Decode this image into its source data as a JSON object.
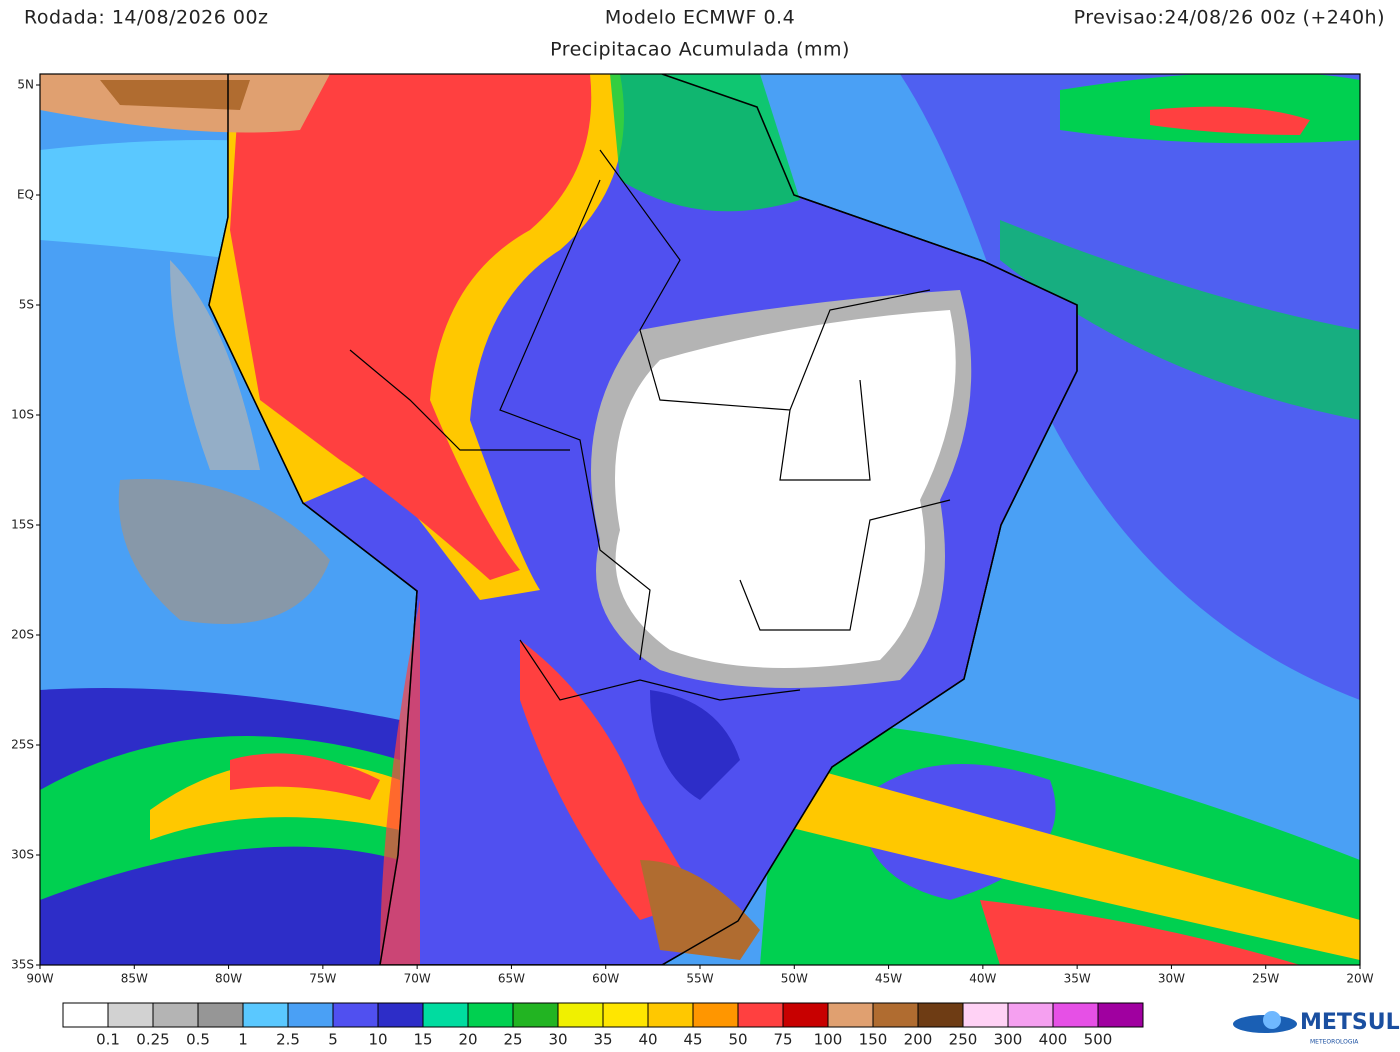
{
  "header": {
    "run": "Rodada: 14/08/2026 00z",
    "model": "Modelo ECMWF 0.4",
    "forecast": "Previsao:24/08/26 00z (+240h)",
    "subtitle": "Precipitacao Acumulada (mm)"
  },
  "axes": {
    "lat_labels": [
      "5N",
      "EQ",
      "5S",
      "10S",
      "15S",
      "20S",
      "25S",
      "30S",
      "35S"
    ],
    "lon_labels": [
      "90W",
      "85W",
      "80W",
      "75W",
      "70W",
      "65W",
      "60W",
      "55W",
      "50W",
      "45W",
      "40W",
      "35W",
      "30W",
      "25W",
      "20W"
    ]
  },
  "legend": {
    "labels": [
      0.1,
      0.25,
      0.5,
      1,
      2.5,
      5,
      10,
      15,
      20,
      25,
      30,
      35,
      40,
      45,
      50,
      75,
      100,
      150,
      200,
      250,
      300,
      400,
      500
    ],
    "colors": [
      "#ffffff",
      "#d2d2d2",
      "#b4b4b4",
      "#969696",
      "#5ac8ff",
      "#4aa0f5",
      "#5050f0",
      "#2d2dc8",
      "#00dca0",
      "#00d050",
      "#22b422",
      "#f0f000",
      "#ffe600",
      "#ffc800",
      "#ff9600",
      "#ff4040",
      "#c80000",
      "#e0a070",
      "#b06c30",
      "#6e3c14",
      "#ffd2f5",
      "#f5a0f0",
      "#e650e6",
      "#a000a0"
    ]
  },
  "logo": {
    "name": "METSUL",
    "tagline": "METEOROLOGIA"
  }
}
